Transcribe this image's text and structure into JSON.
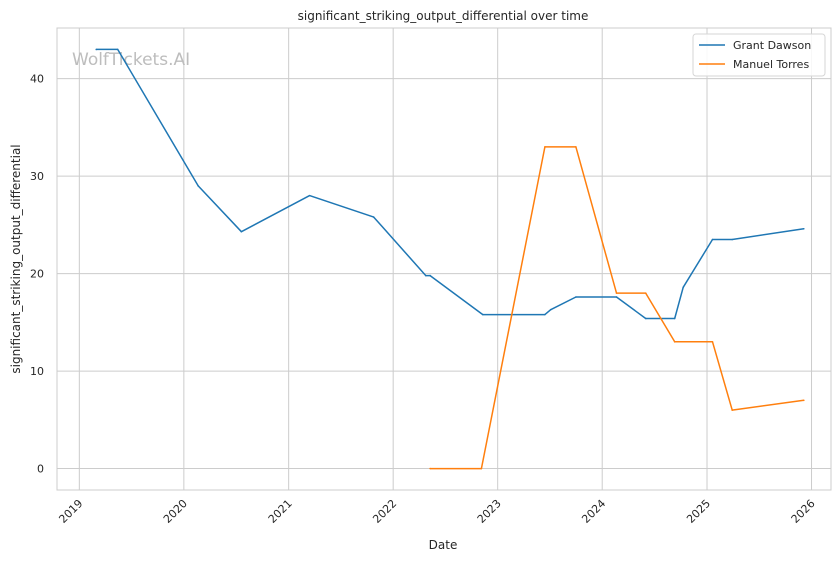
{
  "chart_data": {
    "type": "line",
    "title": "significant_striking_output_differential over time",
    "xlabel": "Date",
    "ylabel": "significant_striking_output_differential",
    "watermark": "WolfTickets.AI",
    "x_ticks": [
      "2019",
      "2020",
      "2021",
      "2022",
      "2023",
      "2024",
      "2025",
      "2026"
    ],
    "y_ticks": [
      0,
      10,
      20,
      30,
      40
    ],
    "xlim": [
      "2018-10-15",
      "2026-03-10"
    ],
    "ylim": [
      -2.2,
      45.2
    ],
    "grid": true,
    "legend_position": "top-right",
    "series": [
      {
        "name": "Grant Dawson",
        "color": "#1f77b4",
        "points": [
          [
            "2019-03-01",
            43.0
          ],
          [
            "2019-05-15",
            43.0
          ],
          [
            "2020-02-20",
            29.0
          ],
          [
            "2020-07-20",
            24.3
          ],
          [
            "2021-03-15",
            28.0
          ],
          [
            "2021-10-25",
            25.8
          ],
          [
            "2022-04-25",
            19.8
          ],
          [
            "2022-05-10",
            19.8
          ],
          [
            "2022-11-10",
            15.8
          ],
          [
            "2023-06-15",
            15.8
          ],
          [
            "2023-07-05",
            16.3
          ],
          [
            "2023-10-01",
            17.6
          ],
          [
            "2024-02-20",
            17.6
          ],
          [
            "2024-06-01",
            15.4
          ],
          [
            "2024-09-10",
            15.4
          ],
          [
            "2024-10-10",
            18.6
          ],
          [
            "2025-01-20",
            23.5
          ],
          [
            "2025-03-30",
            23.5
          ],
          [
            "2025-12-05",
            24.6
          ]
        ]
      },
      {
        "name": "Manuel Torres",
        "color": "#ff7f0e",
        "points": [
          [
            "2022-05-10",
            0.0
          ],
          [
            "2022-11-05",
            0.0
          ],
          [
            "2023-06-15",
            33.0
          ],
          [
            "2023-10-01",
            33.0
          ],
          [
            "2024-02-20",
            18.0
          ],
          [
            "2024-06-01",
            18.0
          ],
          [
            "2024-09-10",
            13.0
          ],
          [
            "2025-01-20",
            13.0
          ],
          [
            "2025-03-30",
            6.0
          ],
          [
            "2025-12-05",
            7.0
          ]
        ]
      }
    ]
  }
}
